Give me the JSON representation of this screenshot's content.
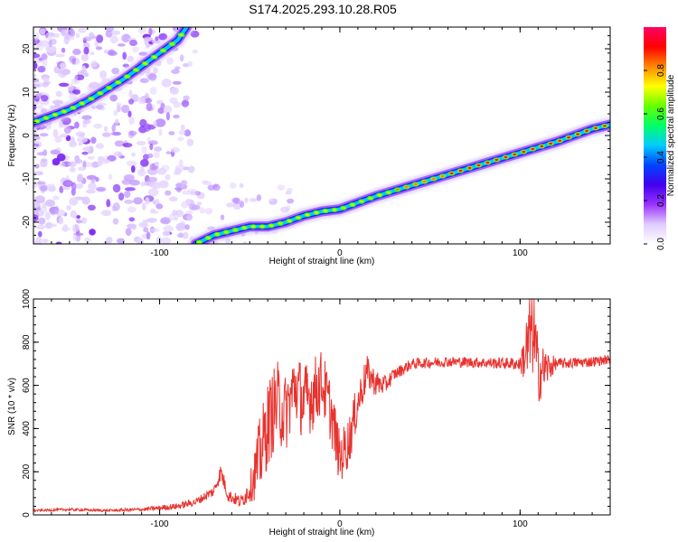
{
  "title": "S174.2025.293.10.28.R05",
  "chart_data": [
    {
      "type": "heatmap",
      "xlabel": "Height of straight line (km)",
      "ylabel": "Frequency (Hz)",
      "xlim": [
        -170,
        150
      ],
      "ylim": [
        -25,
        25
      ],
      "xticks": [
        -100,
        0,
        100
      ],
      "xtick_labels": [
        "-100",
        "0",
        "100"
      ],
      "yticks": [
        -20,
        -10,
        0,
        10,
        20
      ],
      "ytick_labels": [
        "-20",
        "-10",
        "0",
        "10",
        "20"
      ],
      "colorbar": {
        "label": "Normalized spectral amplitude",
        "range": [
          0,
          1
        ],
        "ticks": [
          0.0,
          0.2,
          0.4,
          0.6,
          0.8
        ],
        "tick_labels": [
          "0.0",
          "0.2",
          "0.4",
          "0.6",
          "0.8"
        ],
        "colors": [
          "#ffffff",
          "#e0ccff",
          "#9933ff",
          "#4400ee",
          "#0044ff",
          "#00ccff",
          "#00ff66",
          "#66ff00",
          "#ffff00",
          "#ff8800",
          "#ff0000",
          "#ff0066"
        ]
      },
      "traces": [
        {
          "name": "upper-branch",
          "x": [
            -170,
            -160,
            -150,
            -140,
            -130,
            -120,
            -110,
            -100,
            -90,
            -85
          ],
          "y": [
            3,
            4.5,
            6,
            8,
            10.5,
            13,
            16,
            19,
            22,
            25
          ]
        },
        {
          "name": "lower-branch",
          "x": [
            -80,
            -70,
            -60,
            -50,
            -40,
            -30,
            -20,
            -10,
            0,
            20,
            40,
            60,
            80,
            100,
            120,
            140,
            150
          ],
          "y": [
            -25,
            -23,
            -22,
            -21,
            -21,
            -20,
            -18.5,
            -17.5,
            -17,
            -14,
            -11.5,
            -9,
            -6.5,
            -4,
            -1.5,
            1.5,
            2.5
          ]
        }
      ]
    },
    {
      "type": "line",
      "xlabel": "Height of straight line (km)",
      "ylabel": "SNR (10 * v/v)",
      "xlim": [
        -170,
        150
      ],
      "ylim": [
        0,
        1000
      ],
      "xticks": [
        -100,
        0,
        100
      ],
      "xtick_labels": [
        "-100",
        "0",
        "100"
      ],
      "yticks": [
        0,
        200,
        400,
        600,
        800,
        1000
      ],
      "ytick_labels": [
        "0",
        "200",
        "400",
        "600",
        "800",
        "1000"
      ],
      "series": [
        {
          "name": "SNR",
          "color": "#e8322e",
          "x": [
            -170,
            -150,
            -130,
            -110,
            -90,
            -80,
            -70,
            -66,
            -62,
            -55,
            -50,
            -45,
            -40,
            -35,
            -30,
            -25,
            -20,
            -15,
            -10,
            -5,
            0,
            5,
            10,
            15,
            20,
            25,
            30,
            40,
            60,
            80,
            100,
            104,
            107,
            110,
            120,
            140,
            150
          ],
          "y": [
            20,
            25,
            20,
            25,
            40,
            60,
            110,
            200,
            90,
            60,
            120,
            250,
            420,
            520,
            470,
            600,
            520,
            560,
            620,
            480,
            260,
            340,
            520,
            660,
            610,
            600,
            650,
            700,
            710,
            705,
            700,
            760,
            880,
            660,
            700,
            710,
            720
          ],
          "noise_amplitude": [
            5,
            6,
            6,
            8,
            15,
            18,
            25,
            40,
            30,
            30,
            60,
            180,
            200,
            200,
            180,
            170,
            180,
            170,
            150,
            150,
            120,
            120,
            100,
            80,
            60,
            45,
            30,
            25,
            25,
            25,
            30,
            200,
            250,
            150,
            25,
            25,
            20
          ]
        }
      ]
    }
  ]
}
